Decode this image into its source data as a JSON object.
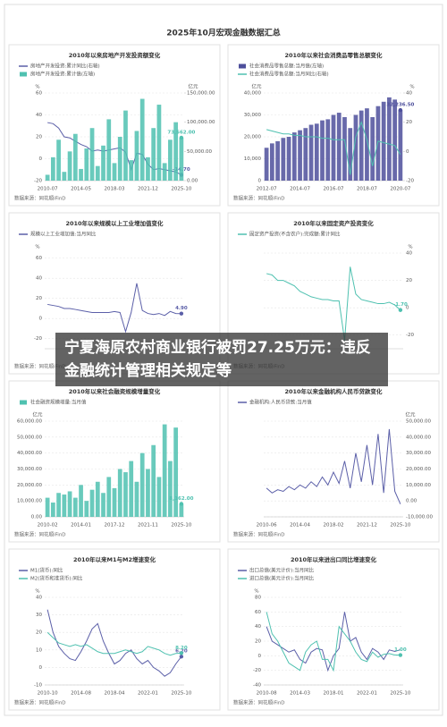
{
  "title": "2025年10月宏观金融数据汇总",
  "headline": "宁夏海原农村商业银行被罚27.25万元：违反金融统计管理相关规定等",
  "chart_data": [
    {
      "type": "combo",
      "title": "2010年以来房地产开发投资额变化",
      "source": "数据来源：同花顺iFinD",
      "y_unit": "%",
      "y2_unit": "亿元",
      "grid": true,
      "categories": [
        "2010-07",
        null,
        null,
        null,
        null,
        null,
        "2014-05",
        null,
        null,
        null,
        null,
        null,
        "2018-03",
        null,
        null,
        null,
        null,
        null,
        "2021-12",
        null,
        null,
        null,
        null,
        null,
        "2025-10"
      ],
      "ylim": [
        -20,
        60
      ],
      "yticks": [
        -20,
        0,
        20,
        40,
        60
      ],
      "y2lim": [
        0,
        150000
      ],
      "y2ticks": [
        {
          "value": 0,
          "label": "0.00"
        },
        {
          "value": 50000,
          "label": "50,000.00"
        },
        {
          "value": 100000,
          "label": "100,000.00"
        },
        {
          "value": 150000,
          "label": "150,000.00"
        }
      ],
      "series": [
        {
          "name": "房地产开发投资:累计同比(右轴)",
          "color": "#5b5fa8",
          "mark": "line",
          "axis": "y",
          "values": [
            33,
            32,
            28,
            20,
            19,
            16,
            13,
            11,
            7,
            8,
            7,
            8,
            9,
            10,
            6,
            -10,
            5,
            4,
            -5,
            -10,
            -9,
            -10,
            -11,
            -12,
            -14.7
          ],
          "value_labels": [
            null,
            null,
            null,
            null,
            null,
            null,
            null,
            null,
            null,
            null,
            null,
            null,
            null,
            null,
            null,
            null,
            null,
            null,
            null,
            null,
            null,
            null,
            null,
            null,
            "-14.70"
          ]
        },
        {
          "name": "房地产开发投资:累计值(左轴)",
          "color": "#4fc1b0",
          "mark": "bar",
          "axis": "y2",
          "values": [
            10000,
            40000,
            70000,
            15000,
            50000,
            80000,
            20000,
            55000,
            90000,
            25000,
            60000,
            105000,
            30000,
            75000,
            120000,
            35000,
            85000,
            140000,
            40000,
            90000,
            130000,
            30000,
            70000,
            100000,
            73562
          ],
          "value_labels": [
            null,
            null,
            null,
            null,
            null,
            null,
            null,
            null,
            null,
            null,
            null,
            null,
            null,
            null,
            null,
            null,
            null,
            null,
            null,
            null,
            null,
            null,
            null,
            null,
            "73,562.00"
          ]
        }
      ]
    },
    {
      "type": "combo",
      "title": "2010年以来社会消费品零售总额变化",
      "source": "数据来源：同花顺iFinD",
      "y_unit": "亿元",
      "y2_unit": "%",
      "grid": true,
      "categories": [
        "2012-07",
        null,
        null,
        null,
        null,
        null,
        "2014-07",
        null,
        null,
        null,
        null,
        null,
        "2016-07",
        null,
        null,
        null,
        null,
        null,
        "2018-07",
        null,
        null,
        null,
        null,
        null,
        "2020-07"
      ],
      "ylim": [
        0,
        40000
      ],
      "yticks": [
        0,
        {
          "value": 10000,
          "label": "10,000"
        },
        {
          "value": 20000,
          "label": "20,000"
        },
        {
          "value": 30000,
          "label": "30,000"
        },
        {
          "value": 40000,
          "label": "40,000"
        }
      ],
      "y2lim": [
        -20,
        40
      ],
      "y2ticks": [
        -20,
        0,
        20,
        40
      ],
      "series": [
        {
          "name": "社会消费品零售总额:当月值(左轴)",
          "color": "#4d4f9b",
          "mark": "bar",
          "axis": "y",
          "values": [
            15000,
            17000,
            18000,
            19500,
            20000,
            22000,
            23000,
            24000,
            25500,
            26000,
            27500,
            28000,
            30000,
            31000,
            29000,
            24000,
            30000,
            32000,
            33000,
            29000,
            34000,
            36000,
            38000,
            37000,
            32236.5
          ],
          "value_labels": [
            null,
            null,
            null,
            null,
            null,
            null,
            null,
            null,
            null,
            null,
            null,
            null,
            null,
            null,
            null,
            null,
            null,
            null,
            null,
            null,
            null,
            null,
            null,
            null,
            "32,236.50"
          ]
        },
        {
          "name": "社会消费品零售总额:当月同比(右轴)",
          "color": "#4fc1b0",
          "mark": "line",
          "axis": "y2",
          "values": [
            15,
            14,
            13,
            12,
            12,
            11,
            11,
            10,
            10,
            10,
            9,
            9,
            8,
            8,
            8,
            -16,
            10,
            20,
            8,
            -10,
            7,
            6,
            5,
            4,
            -2
          ]
        }
      ]
    },
    {
      "type": "line",
      "title": "2010年以来规模以上工业增加值变化",
      "source": "数据来源：同花顺iFinD",
      "y_unit": "%",
      "grid": true,
      "ylim": [
        -30,
        65
      ],
      "yticks": [
        -20,
        0,
        20,
        40,
        60
      ],
      "series": [
        {
          "name": "规模以上工业增加值:当月同比",
          "color": "#5b5fa8",
          "mark": "line",
          "axis": "y",
          "values": [
            14,
            13,
            12,
            10,
            10,
            9,
            8,
            7,
            6,
            6,
            6,
            6,
            7,
            6,
            -13,
            6,
            35,
            8,
            5,
            4,
            5,
            3,
            7,
            5,
            4.9
          ],
          "value_labels": [
            null,
            null,
            null,
            null,
            null,
            null,
            null,
            null,
            null,
            null,
            null,
            null,
            null,
            null,
            null,
            null,
            null,
            null,
            null,
            null,
            null,
            null,
            null,
            null,
            "4.90"
          ]
        }
      ]
    },
    {
      "type": "line",
      "title": "2010年以来固定资产投资变化",
      "source": "数据来源：同花顺iFinD",
      "y_unit": "%",
      "y_axis_side": "right",
      "grid": true,
      "ylim": [
        -30,
        40
      ],
      "yticks": [
        -20,
        0,
        20,
        40
      ],
      "series": [
        {
          "name": "固定资产投资(不含农户):完成额:累计同比",
          "color": "#4fc1b0",
          "mark": "line",
          "axis": "y",
          "values": [
            25,
            24,
            20,
            20,
            18,
            16,
            12,
            10,
            8,
            7,
            6,
            6,
            5,
            5,
            -24,
            30,
            10,
            6,
            5,
            4,
            3,
            3,
            4,
            2,
            -1.7
          ],
          "value_labels": [
            null,
            null,
            null,
            null,
            null,
            null,
            null,
            null,
            null,
            null,
            null,
            null,
            null,
            null,
            null,
            null,
            null,
            null,
            null,
            null,
            null,
            null,
            null,
            null,
            "-1.70"
          ]
        }
      ]
    },
    {
      "type": "bar",
      "title": "2010年以来社会融资规模增量变化",
      "source": "数据来源：同花顺iFinD",
      "y_unit": "亿元",
      "grid": true,
      "categories": [
        "2010-02",
        null,
        null,
        null,
        null,
        null,
        "2014-01",
        null,
        null,
        null,
        null,
        null,
        "2017-12",
        null,
        null,
        null,
        null,
        null,
        "2021-11",
        null,
        null,
        null,
        null,
        null,
        "2025-10"
      ],
      "ylim": [
        0,
        60000
      ],
      "yticks": [
        {
          "value": 0,
          "label": "0.00"
        },
        {
          "value": 10000,
          "label": "10,000.00"
        },
        {
          "value": 20000,
          "label": "20,000.00"
        },
        {
          "value": 30000,
          "label": "30,000.00"
        },
        {
          "value": 40000,
          "label": "40,000.00"
        },
        {
          "value": 50000,
          "label": "50,000.00"
        },
        {
          "value": 60000,
          "label": "60,000.00"
        }
      ],
      "series": [
        {
          "name": "社会融资规模增量:当月值",
          "color": "#4fc1b0",
          "mark": "bar",
          "axis": "y",
          "values": [
            12000,
            9000,
            15000,
            14000,
            16000,
            12000,
            20000,
            10000,
            17000,
            22000,
            15000,
            25000,
            18000,
            30000,
            28000,
            35000,
            22000,
            40000,
            30000,
            45000,
            25000,
            58000,
            35000,
            56000,
            8162
          ],
          "value_labels": [
            null,
            null,
            null,
            null,
            null,
            null,
            null,
            null,
            null,
            null,
            null,
            null,
            null,
            null,
            null,
            null,
            null,
            null,
            null,
            null,
            null,
            null,
            null,
            null,
            "8,162.00"
          ]
        }
      ]
    },
    {
      "type": "line",
      "title": "2010年以来金融机构人民币贷款变化",
      "source": "数据来源：同花顺iFinD",
      "y_unit": "亿元",
      "y_axis_side": "right",
      "grid": true,
      "categories": [
        "2010-06",
        null,
        null,
        null,
        null,
        null,
        "2014-04",
        null,
        null,
        null,
        null,
        null,
        "2018-02",
        null,
        null,
        null,
        null,
        null,
        "2021-12",
        null,
        null,
        null,
        null,
        null,
        "2025-10"
      ],
      "ylim": [
        -10000,
        50000
      ],
      "yticks": [
        {
          "value": -10000,
          "label": "-10,000.00"
        },
        {
          "value": 0,
          "label": "0.00"
        },
        {
          "value": 10000,
          "label": "10,000.00"
        },
        {
          "value": 20000,
          "label": "20,000.00"
        },
        {
          "value": 30000,
          "label": "30,000.00"
        },
        {
          "value": 40000,
          "label": "40,000.00"
        },
        {
          "value": 50000,
          "label": "50,000.00"
        }
      ],
      "series": [
        {
          "name": "金融机构:人民币贷款:当月值",
          "color": "#5b5fa8",
          "mark": "line",
          "axis": "y",
          "values": [
            8000,
            5000,
            7000,
            6000,
            9000,
            7000,
            10000,
            8000,
            12000,
            9000,
            15000,
            10000,
            18000,
            11000,
            25000,
            8000,
            30000,
            12000,
            35000,
            10000,
            42000,
            5000,
            45000,
            6000,
            -2000
          ]
        }
      ]
    },
    {
      "type": "line",
      "title": "2010年以来M1与M2增速变化",
      "source": "数据来源：同花顺iFinD",
      "y_unit": "%",
      "grid": true,
      "categories": [
        "2010-10",
        null,
        null,
        null,
        null,
        null,
        "2014-08",
        null,
        null,
        null,
        null,
        null,
        "2018-04",
        null,
        null,
        null,
        null,
        null,
        "2022-01",
        null,
        null,
        null,
        null,
        null,
        "2025-10"
      ],
      "ylim": [
        -10,
        40
      ],
      "yticks": [
        -10,
        0,
        10,
        20,
        30,
        40
      ],
      "series": [
        {
          "name": "M1(货币):同比",
          "color": "#5b5fa8",
          "mark": "line",
          "axis": "y",
          "values": [
            33,
            20,
            12,
            8,
            5,
            4,
            9,
            15,
            22,
            25,
            15,
            8,
            2,
            4,
            8,
            10,
            5,
            2,
            4,
            0,
            -2,
            -5,
            -3,
            2,
            6.2
          ],
          "value_labels": [
            null,
            null,
            null,
            null,
            null,
            null,
            null,
            null,
            null,
            null,
            null,
            null,
            null,
            null,
            null,
            null,
            null,
            null,
            null,
            null,
            null,
            null,
            null,
            null,
            "6.20"
          ]
        },
        {
          "name": "M2(货币和准货币):同比",
          "color": "#4fc1b0",
          "mark": "line",
          "axis": "y",
          "values": [
            20,
            17,
            14,
            13,
            12,
            13,
            12,
            13,
            11,
            9,
            8,
            8,
            8,
            9,
            10,
            9,
            8,
            9,
            12,
            11,
            10,
            8,
            7,
            8,
            8.2
          ],
          "value_labels": [
            null,
            null,
            null,
            null,
            null,
            null,
            null,
            null,
            null,
            null,
            null,
            null,
            null,
            null,
            null,
            null,
            null,
            null,
            null,
            null,
            null,
            null,
            null,
            null,
            "8.20"
          ]
        }
      ]
    },
    {
      "type": "line",
      "title": "2010年以来进出口同比增速变化",
      "source": "数据来源：同花顺iFinD",
      "y_unit": "%",
      "grid": true,
      "categories": [
        "2010-08",
        null,
        null,
        null,
        null,
        null,
        "2014-03",
        null,
        null,
        null,
        null,
        null,
        "2018-01",
        null,
        null,
        null,
        null,
        null,
        "2022-01",
        null,
        null,
        null,
        null,
        null,
        "2025-10"
      ],
      "ylim": [
        -40,
        80
      ],
      "yticks": [
        -40,
        -20,
        0,
        20,
        40,
        60,
        80
      ],
      "series": [
        {
          "name": "出口总值(美元计价):当月同比",
          "color": "#5b5fa8",
          "mark": "line",
          "axis": "y",
          "values": [
            40,
            20,
            15,
            10,
            5,
            8,
            -5,
            -10,
            5,
            10,
            8,
            -20,
            0,
            10,
            60,
            20,
            25,
            5,
            -5,
            10,
            5,
            -5,
            8,
            6,
            8.3
          ]
        },
        {
          "name": "进口总值(美元计价):当月同比",
          "color": "#4fc1b0",
          "mark": "line",
          "axis": "y",
          "values": [
            60,
            30,
            20,
            5,
            -10,
            -15,
            -20,
            5,
            15,
            20,
            -5,
            -5,
            -20,
            40,
            30,
            20,
            5,
            -5,
            -8,
            5,
            -2,
            2,
            3,
            1,
            1
          ],
          "value_labels": [
            null,
            null,
            null,
            null,
            null,
            null,
            null,
            null,
            null,
            null,
            null,
            null,
            null,
            null,
            null,
            null,
            null,
            null,
            null,
            null,
            null,
            null,
            null,
            null,
            "1.00"
          ]
        }
      ]
    }
  ]
}
